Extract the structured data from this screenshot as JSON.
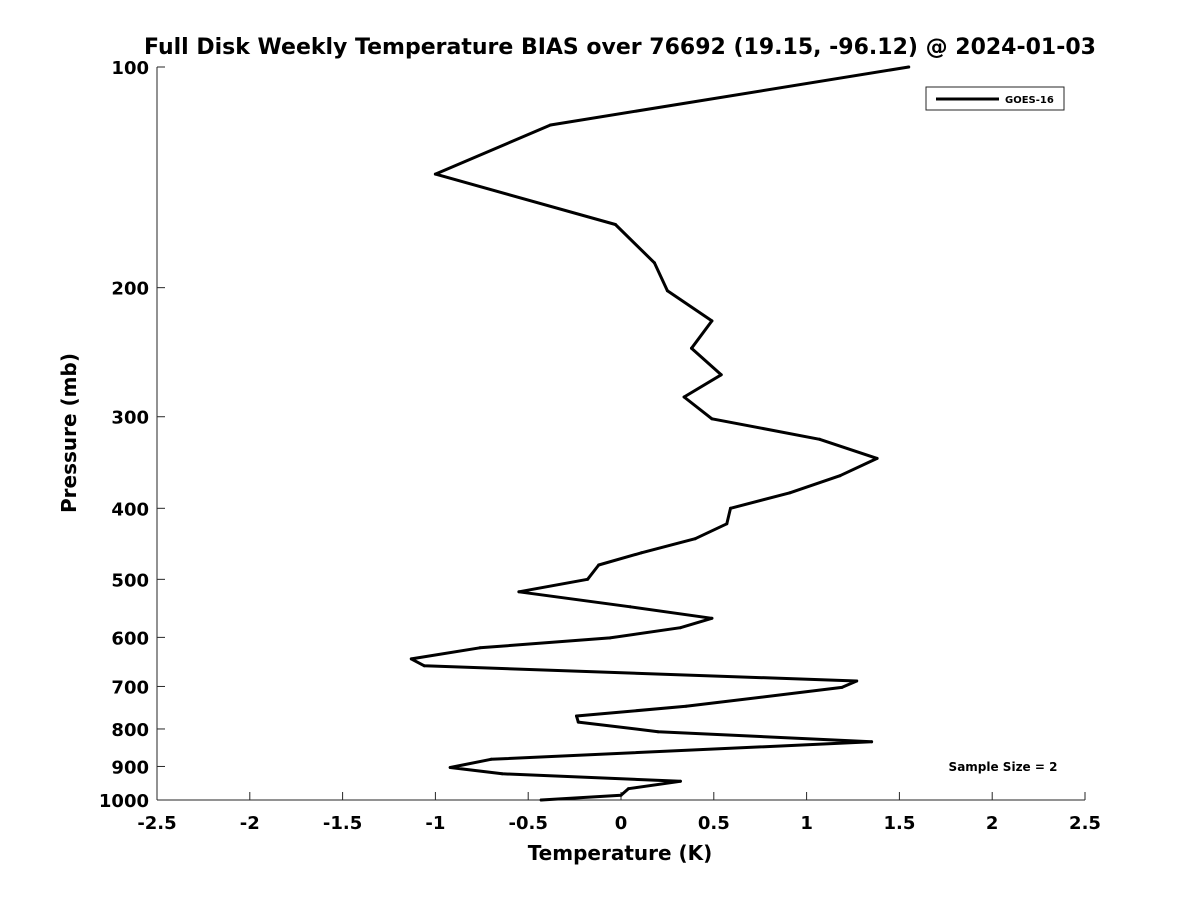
{
  "chart_data": {
    "type": "line",
    "title": "Full Disk Weekly Temperature BIAS over 76692 (19.15, -96.12) @ 2024-01-03",
    "xlabel": "Temperature (K)",
    "ylabel": "Pressure (mb)",
    "xlim": [
      -2.5,
      2.5
    ],
    "ylim": [
      100,
      1000
    ],
    "y_scale": "log",
    "y_reversed": true,
    "grid": false,
    "legend_position": "top-right",
    "x_ticks": [
      -2.5,
      -2,
      -1.5,
      -1,
      -0.5,
      0,
      0.5,
      1,
      1.5,
      2,
      2.5
    ],
    "x_tick_labels": [
      "-2.5",
      "-2",
      "-1.5",
      "-1",
      "-0.5",
      "0",
      "0.5",
      "1",
      "1.5",
      "2",
      "2.5"
    ],
    "y_ticks": [
      100,
      200,
      300,
      400,
      500,
      600,
      700,
      800,
      900,
      1000
    ],
    "y_tick_labels": [
      "100",
      "200",
      "300",
      "400",
      "500",
      "600",
      "700",
      "800",
      "900",
      "1000"
    ],
    "annotation": "Sample Size = 2",
    "series": [
      {
        "name": "GOES-16",
        "color": "#000000",
        "points": [
          {
            "x": 1.55,
            "y": 100
          },
          {
            "x": -0.38,
            "y": 120
          },
          {
            "x": -1.0,
            "y": 140
          },
          {
            "x": -0.03,
            "y": 164
          },
          {
            "x": 0.18,
            "y": 185
          },
          {
            "x": 0.25,
            "y": 202
          },
          {
            "x": 0.49,
            "y": 222
          },
          {
            "x": 0.38,
            "y": 242
          },
          {
            "x": 0.54,
            "y": 263
          },
          {
            "x": 0.34,
            "y": 282
          },
          {
            "x": 0.49,
            "y": 302
          },
          {
            "x": 1.07,
            "y": 322
          },
          {
            "x": 1.38,
            "y": 342
          },
          {
            "x": 1.18,
            "y": 361
          },
          {
            "x": 0.91,
            "y": 381
          },
          {
            "x": 0.59,
            "y": 400
          },
          {
            "x": 0.57,
            "y": 420
          },
          {
            "x": 0.4,
            "y": 440
          },
          {
            "x": 0.11,
            "y": 460
          },
          {
            "x": -0.12,
            "y": 478
          },
          {
            "x": -0.18,
            "y": 500
          },
          {
            "x": -0.55,
            "y": 520
          },
          {
            "x": 0.05,
            "y": 545
          },
          {
            "x": 0.49,
            "y": 565
          },
          {
            "x": 0.32,
            "y": 582
          },
          {
            "x": -0.06,
            "y": 601
          },
          {
            "x": -0.76,
            "y": 620
          },
          {
            "x": -1.13,
            "y": 642
          },
          {
            "x": -1.06,
            "y": 656
          },
          {
            "x": 1.27,
            "y": 688
          },
          {
            "x": 1.19,
            "y": 702
          },
          {
            "x": 0.35,
            "y": 745
          },
          {
            "x": -0.24,
            "y": 768
          },
          {
            "x": -0.23,
            "y": 783
          },
          {
            "x": 0.2,
            "y": 807
          },
          {
            "x": 1.35,
            "y": 833
          },
          {
            "x": -0.7,
            "y": 880
          },
          {
            "x": -0.92,
            "y": 903
          },
          {
            "x": -0.64,
            "y": 921
          },
          {
            "x": 0.32,
            "y": 943
          },
          {
            "x": 0.04,
            "y": 965
          },
          {
            "x": 0.0,
            "y": 985
          },
          {
            "x": -0.43,
            "y": 1000
          }
        ]
      }
    ]
  }
}
